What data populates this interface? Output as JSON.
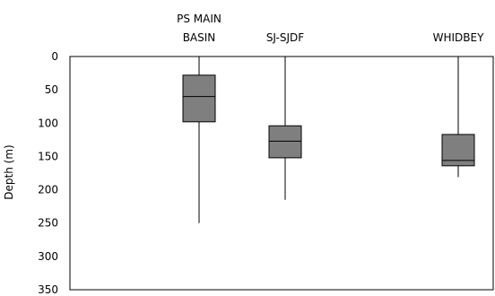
{
  "chart_data": {
    "type": "boxplot",
    "title": "",
    "xlabel": "",
    "ylabel": "Depth (m)",
    "ylim": [
      0,
      350
    ],
    "y_inverted": true,
    "yticks": [
      0,
      50,
      100,
      150,
      200,
      250,
      300,
      350
    ],
    "grid": false,
    "legend": "none",
    "box_color": "#7f7f7f",
    "categories": [
      {
        "label_lines": [
          "PS MAIN",
          "BASIN"
        ],
        "min": 0,
        "q1": 28,
        "median": 60,
        "q3": 98,
        "max": 250
      },
      {
        "label_lines": [
          "SJ-SJDF"
        ],
        "min": 0,
        "q1": 104,
        "median": 127,
        "q3": 152,
        "max": 215
      },
      {
        "label_lines": [
          "WHIDBEY"
        ],
        "min": 0,
        "q1": 117,
        "median": 156,
        "q3": 164,
        "max": 181
      }
    ]
  }
}
